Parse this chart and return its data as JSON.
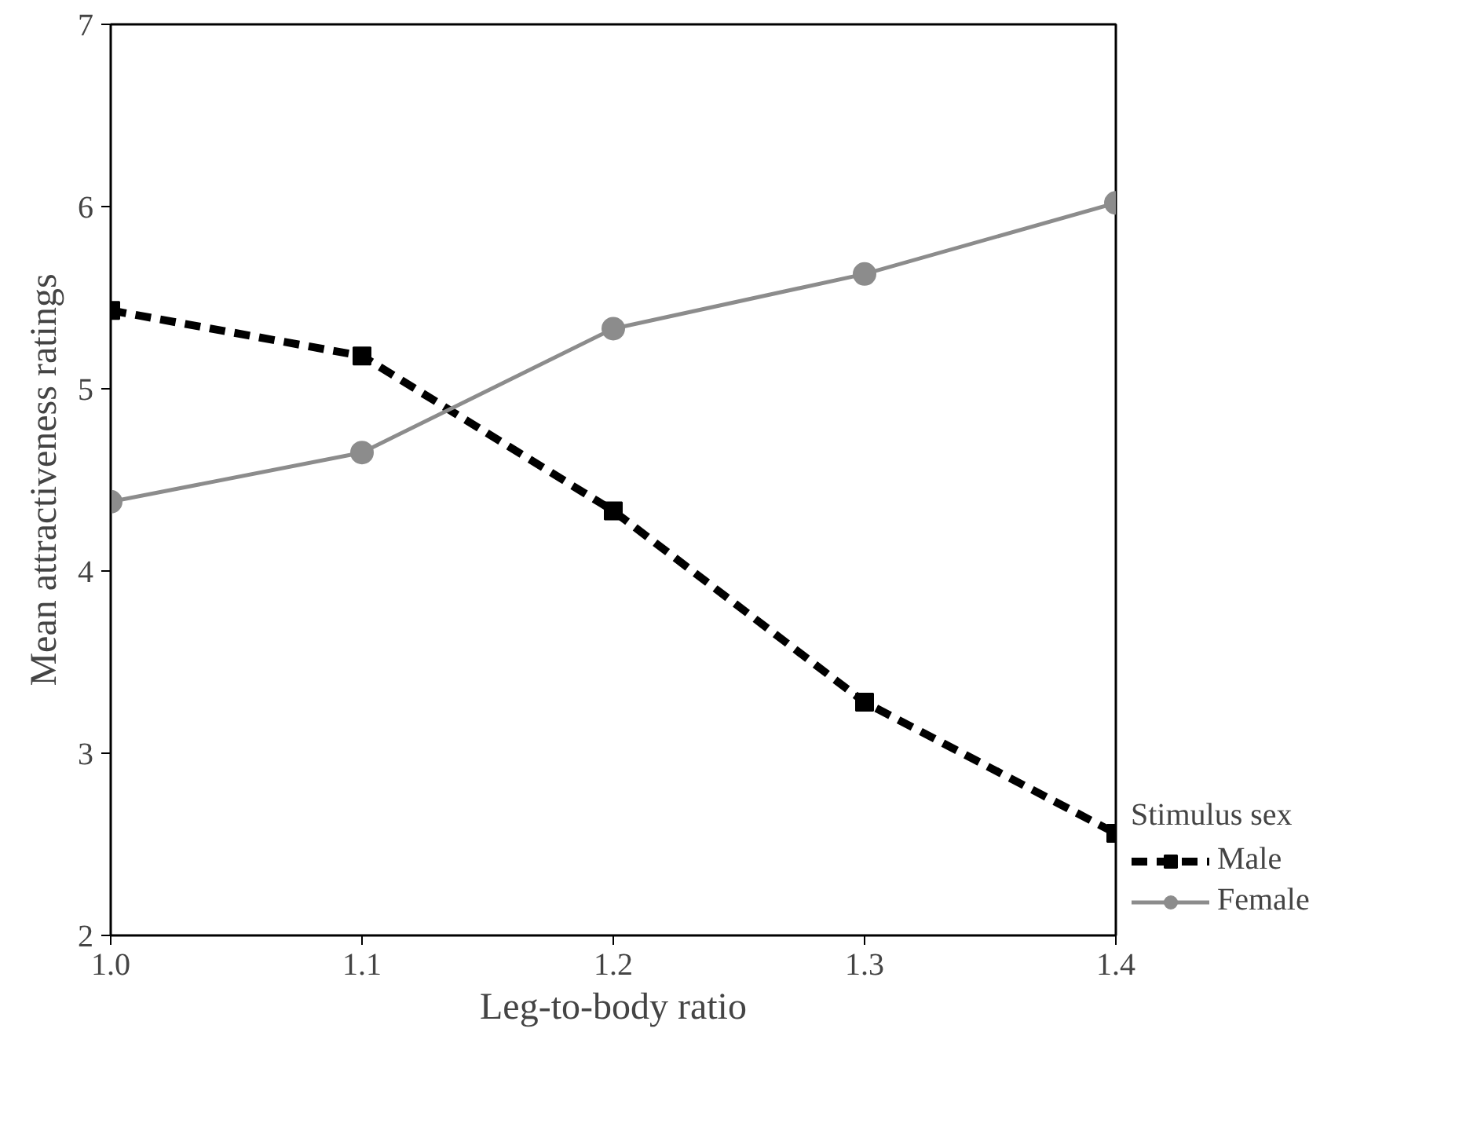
{
  "chart_data": {
    "type": "line",
    "xlabel": "Leg-to-body ratio",
    "ylabel": "Mean attractiveness ratings",
    "legend_title": "Stimulus sex",
    "x": [
      1.0,
      1.1,
      1.2,
      1.3,
      1.4
    ],
    "series": [
      {
        "name": "Male",
        "color": "#000000",
        "values": [
          5.43,
          5.18,
          4.33,
          3.28,
          2.56
        ],
        "marker": "square",
        "line_style": "dashed"
      },
      {
        "name": "Female",
        "color": "#8c8c8c",
        "values": [
          4.38,
          4.65,
          5.33,
          5.63,
          6.02
        ],
        "marker": "circle",
        "line_style": "solid"
      }
    ],
    "xlim": [
      1.0,
      1.4
    ],
    "ylim": [
      2,
      7
    ],
    "xticks": [
      {
        "value": 1.0,
        "label": "1.0"
      },
      1.1,
      1.2,
      1.3,
      1.4
    ],
    "yticks": [
      2,
      3,
      4,
      5,
      6,
      7
    ],
    "grid": false,
    "legend": "right"
  }
}
